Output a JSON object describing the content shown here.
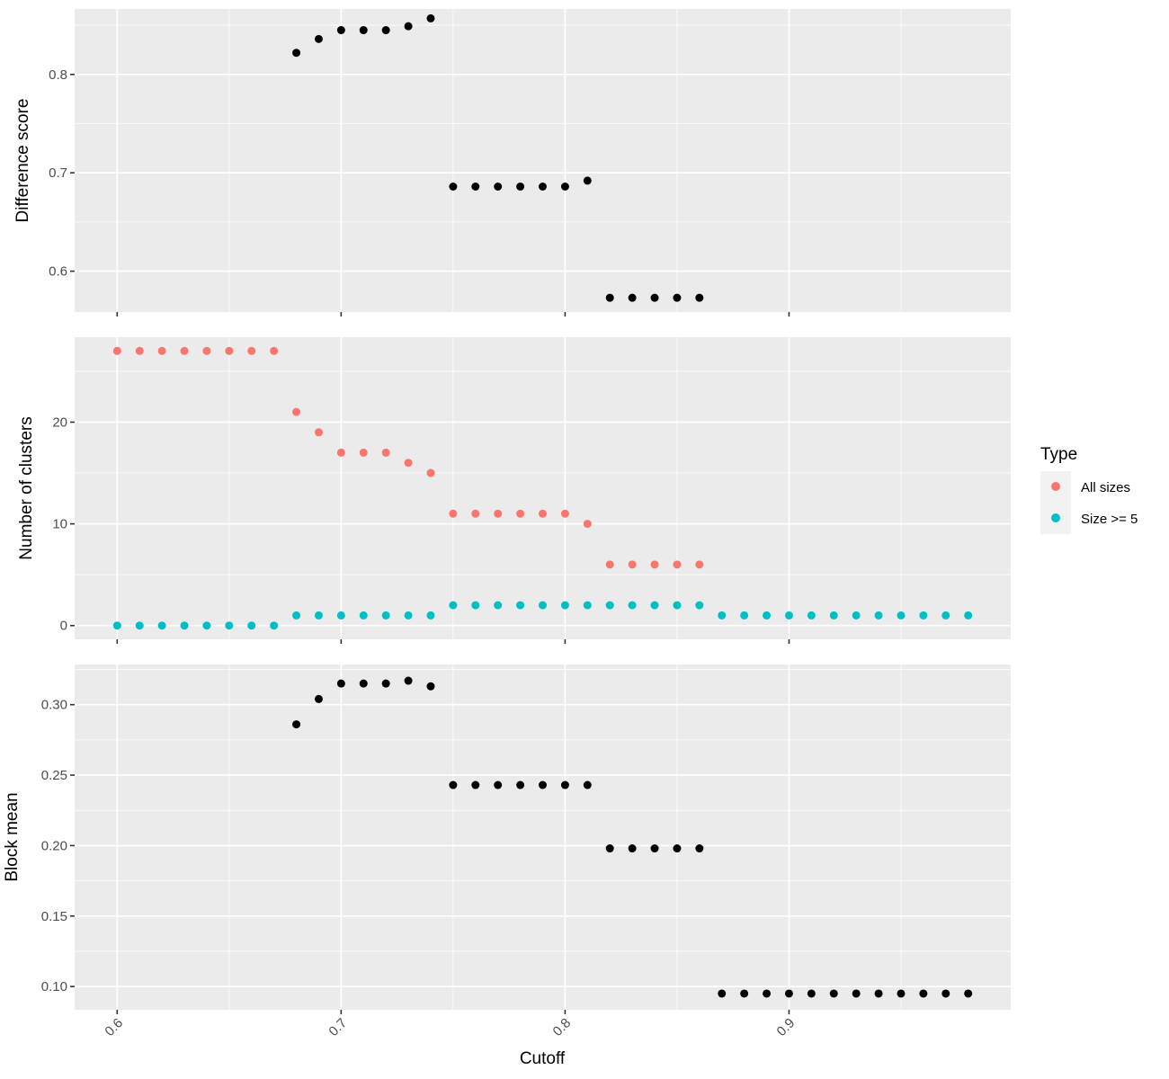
{
  "chart_data": {
    "type": "scatter",
    "xlabel": "Cutoff",
    "xlim": [
      0.581,
      0.999
    ],
    "xticks": [
      "0.6",
      "0.7",
      "0.8",
      "0.9"
    ],
    "xtick_values": [
      0.6,
      0.7,
      0.8,
      0.9
    ],
    "legend": {
      "title": "Type",
      "placement": "right",
      "entries": [
        {
          "label": "All sizes",
          "color": "#F8766D"
        },
        {
          "label": "Size >= 5",
          "color": "#00BFC4"
        }
      ]
    },
    "panels": [
      {
        "ylabel": "Difference score",
        "ylim": [
          0.5585,
          0.8665
        ],
        "yticks": [
          "0.6",
          "0.7",
          "0.8"
        ],
        "ytick_values": [
          0.6,
          0.7,
          0.8
        ],
        "series": [
          {
            "color": "#000000",
            "x": [
              0.68,
              0.69,
              0.7,
              0.71,
              0.72,
              0.73,
              0.74,
              0.75,
              0.76,
              0.77,
              0.78,
              0.79,
              0.8,
              0.81,
              0.82,
              0.83,
              0.84,
              0.85,
              0.86
            ],
            "y": [
              0.822,
              0.836,
              0.845,
              0.845,
              0.845,
              0.849,
              0.857,
              0.686,
              0.686,
              0.686,
              0.686,
              0.686,
              0.686,
              0.692,
              0.573,
              0.573,
              0.573,
              0.573,
              0.573
            ]
          }
        ]
      },
      {
        "ylabel": "Number of clusters",
        "ylim": [
          -1.35,
          28.35
        ],
        "yticks": [
          "0",
          "10",
          "20"
        ],
        "ytick_values": [
          0,
          10,
          20
        ],
        "series": [
          {
            "name": "All sizes",
            "color": "#F8766D",
            "x": [
              0.6,
              0.61,
              0.62,
              0.63,
              0.64,
              0.65,
              0.66,
              0.67,
              0.68,
              0.69,
              0.7,
              0.71,
              0.72,
              0.73,
              0.74,
              0.75,
              0.76,
              0.77,
              0.78,
              0.79,
              0.8,
              0.81,
              0.82,
              0.83,
              0.84,
              0.85,
              0.86
            ],
            "y": [
              27,
              27,
              27,
              27,
              27,
              27,
              27,
              27,
              21,
              19,
              17,
              17,
              17,
              16,
              15,
              11,
              11,
              11,
              11,
              11,
              11,
              10,
              6,
              6,
              6,
              6,
              6
            ]
          },
          {
            "name": "Size >= 5",
            "color": "#00BFC4",
            "x": [
              0.6,
              0.61,
              0.62,
              0.63,
              0.64,
              0.65,
              0.66,
              0.67,
              0.68,
              0.69,
              0.7,
              0.71,
              0.72,
              0.73,
              0.74,
              0.75,
              0.76,
              0.77,
              0.78,
              0.79,
              0.8,
              0.81,
              0.82,
              0.83,
              0.84,
              0.85,
              0.86,
              0.87,
              0.88,
              0.89,
              0.9,
              0.91,
              0.92,
              0.93,
              0.94,
              0.95,
              0.96,
              0.97,
              0.98
            ],
            "y": [
              0,
              0,
              0,
              0,
              0,
              0,
              0,
              0,
              1,
              1,
              1,
              1,
              1,
              1,
              1,
              2,
              2,
              2,
              2,
              2,
              2,
              2,
              2,
              2,
              2,
              2,
              2,
              1,
              1,
              1,
              1,
              1,
              1,
              1,
              1,
              1,
              1,
              1,
              1
            ]
          }
        ]
      },
      {
        "ylabel": "Block mean",
        "ylim": [
          0.0835,
          0.3285
        ],
        "yticks": [
          "0.10",
          "0.15",
          "0.20",
          "0.25",
          "0.30"
        ],
        "ytick_values": [
          0.1,
          0.15,
          0.2,
          0.25,
          0.3
        ],
        "series": [
          {
            "color": "#000000",
            "x": [
              0.68,
              0.69,
              0.7,
              0.71,
              0.72,
              0.73,
              0.74,
              0.75,
              0.76,
              0.77,
              0.78,
              0.79,
              0.8,
              0.81,
              0.82,
              0.83,
              0.84,
              0.85,
              0.86,
              0.87,
              0.88,
              0.89,
              0.9,
              0.91,
              0.92,
              0.93,
              0.94,
              0.95,
              0.96,
              0.97,
              0.98
            ],
            "y": [
              0.286,
              0.304,
              0.315,
              0.315,
              0.315,
              0.317,
              0.313,
              0.243,
              0.243,
              0.243,
              0.243,
              0.243,
              0.243,
              0.243,
              0.198,
              0.198,
              0.198,
              0.198,
              0.198,
              0.095,
              0.095,
              0.095,
              0.095,
              0.095,
              0.095,
              0.095,
              0.095,
              0.095,
              0.095,
              0.095,
              0.095
            ]
          }
        ]
      }
    ]
  }
}
